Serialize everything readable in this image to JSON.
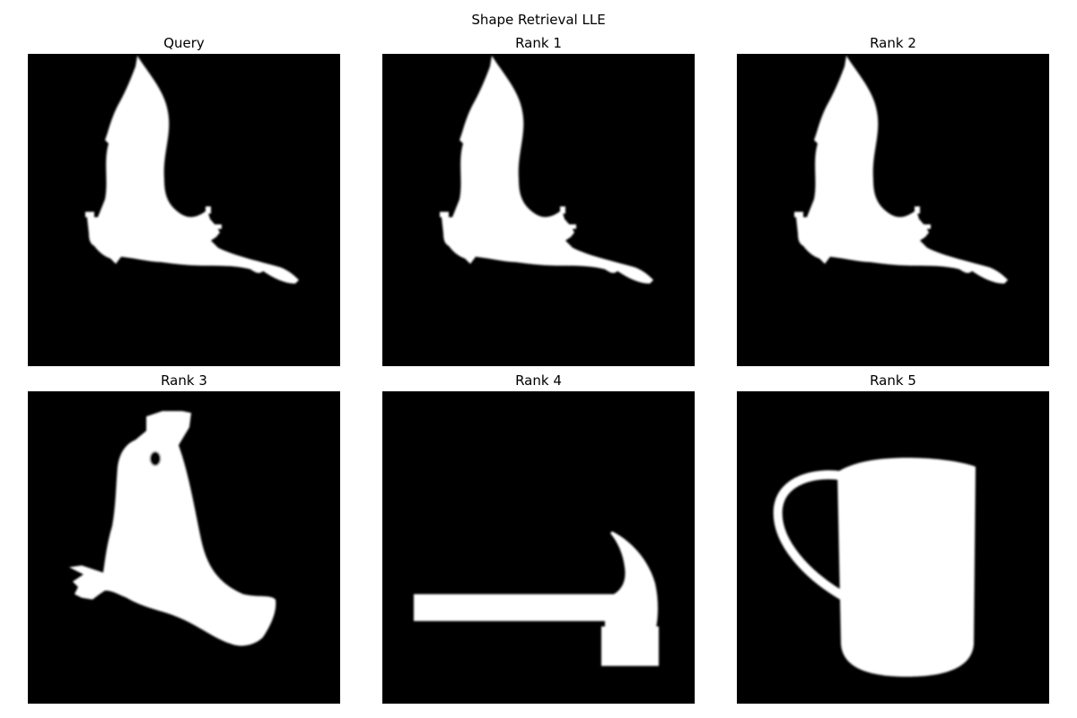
{
  "figure": {
    "title": "Shape Retrieval LLE"
  },
  "panels": [
    {
      "title": "Query",
      "shape": "bird-silhouette-icon"
    },
    {
      "title": "Rank 1",
      "shape": "bird-silhouette-icon"
    },
    {
      "title": "Rank 2",
      "shape": "bird-silhouette-icon"
    },
    {
      "title": "Rank 3",
      "shape": "chicken-silhouette-icon"
    },
    {
      "title": "Rank 4",
      "shape": "hammer-silhouette-icon"
    },
    {
      "title": "Rank 5",
      "shape": "mug-silhouette-icon"
    }
  ],
  "colors": {
    "background": "#000000",
    "shape": "#ffffff"
  }
}
